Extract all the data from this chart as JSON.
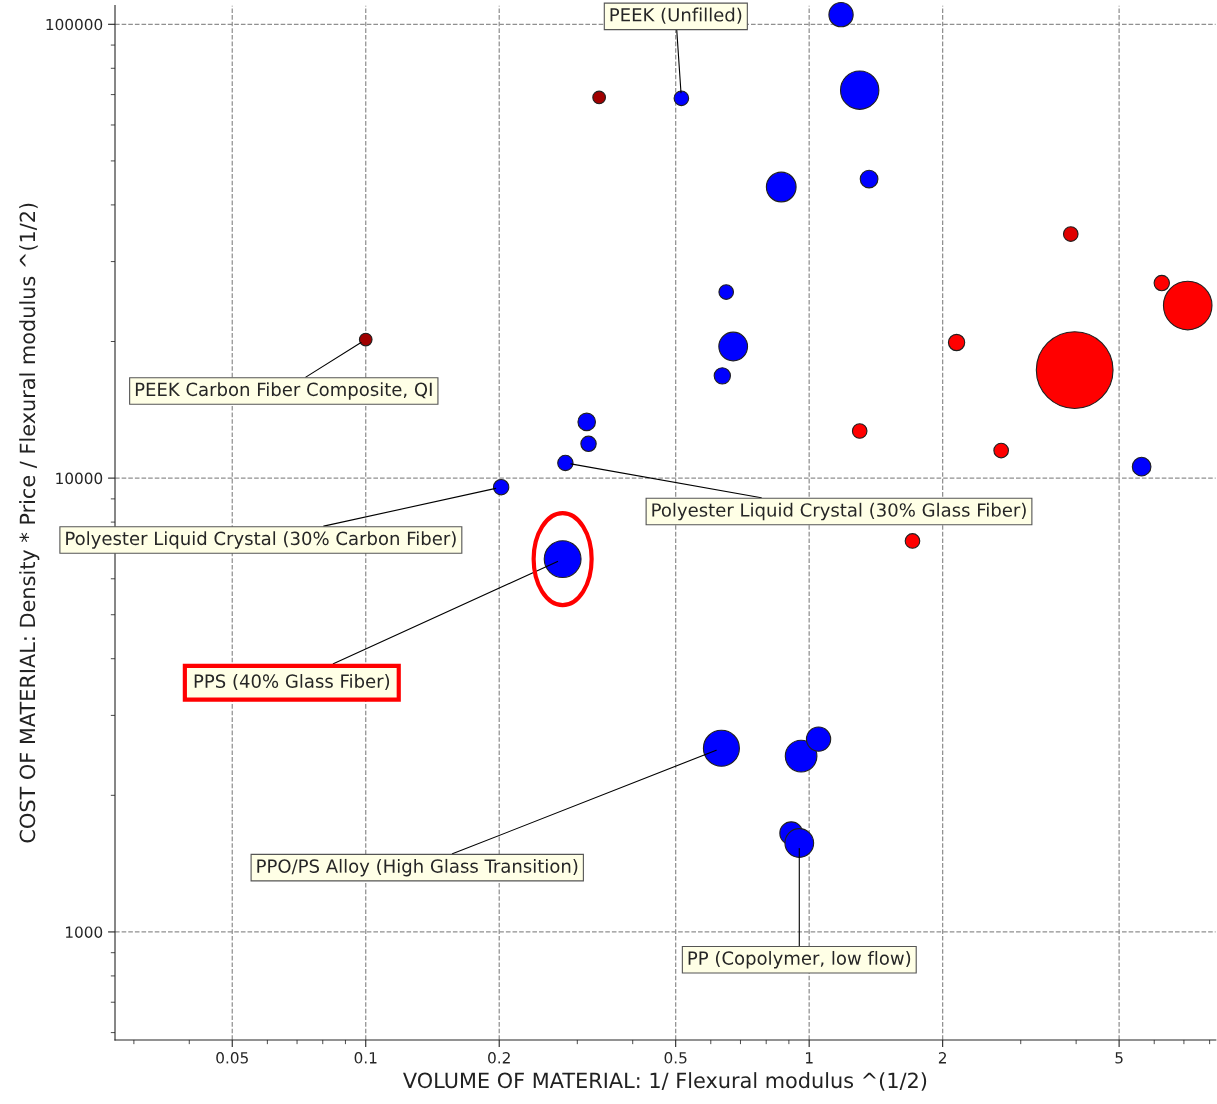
{
  "chart_data": {
    "type": "bubble",
    "xlabel": "VOLUME OF MATERIAL: 1/ Flexural modulus ^(1/2)",
    "ylabel": "COST OF MATERIAL: Density * Price / Flexural modulus ^(1/2)",
    "log": "xy",
    "xlim": [
      0.0272,
      8.26
    ],
    "ylim": [
      578,
      110000
    ],
    "xticks": [
      0.05,
      0.1,
      0.2,
      0.5,
      1,
      2,
      5
    ],
    "yticks": [
      1000,
      10000,
      100000
    ],
    "grid": true,
    "legend": false,
    "series": [
      {
        "x": [
          1.18,
          1.3,
          0.515,
          0.336,
          1.365,
          0.865,
          3.89,
          6.24,
          7.14,
          0.65,
          0.674,
          2.15,
          3.97,
          0.1,
          0.637,
          0.315,
          0.318,
          1.3,
          2.71,
          0.282,
          5.62,
          0.202,
          1.71,
          0.278,
          0.634,
          0.959,
          1.05,
          0.911,
          0.95
        ],
        "values": [
          105000,
          71600,
          68700,
          69000,
          45600,
          43800,
          34500,
          26900,
          24000,
          25700,
          19500,
          19900,
          17300,
          20200,
          16800,
          13300,
          11900,
          12700,
          11500,
          10800,
          10600,
          9550,
          7270,
          6630,
          2540,
          2440,
          2660,
          1650,
          1570
        ],
        "sizes": [
          0.1,
          0.25,
          0.036,
          0.027,
          0.053,
          0.15,
          0.036,
          0.04,
          0.4,
          0.036,
          0.14,
          0.045,
          1.0,
          0.027,
          0.045,
          0.052,
          0.04,
          0.036,
          0.036,
          0.04,
          0.059,
          0.04,
          0.036,
          0.23,
          0.22,
          0.17,
          0.1,
          0.088,
          0.14
        ],
        "colors": [
          "#0000ff",
          "#0000ff",
          "#0000ff",
          "#a00000",
          "#0000ff",
          "#0000ff",
          "#e00000",
          "#ff0000",
          "#ff0000",
          "#0000ff",
          "#0000ff",
          "#ff0000",
          "#ff0000",
          "#a00000",
          "#0000ff",
          "#0000ff",
          "#0000ff",
          "#ff0000",
          "#ff0000",
          "#0000ff",
          "#0000ff",
          "#0000ff",
          "#ff0000",
          "#0000ff",
          "#0000ff",
          "#0000ff",
          "#0000ff",
          "#0000ff",
          "#0000ff"
        ]
      }
    ],
    "annotations": [
      {
        "text": "PEEK (Unfilled)",
        "x": 0.515,
        "y": 68700
      },
      {
        "text": "PEEK Carbon Fiber Composite, QI",
        "x": 0.1,
        "y": 20200
      },
      {
        "text": "Polyester Liquid Crystal (30% Glass Fiber)",
        "x": 0.282,
        "y": 10800
      },
      {
        "text": "Polyester Liquid Crystal (30% Carbon Fiber)",
        "x": 0.202,
        "y": 9550
      },
      {
        "text": "PPS (40% Glass Fiber)",
        "x": 0.278,
        "y": 6630
      },
      {
        "text": "PPO/PS Alloy (High Glass Transition)",
        "x": 0.634,
        "y": 2540
      },
      {
        "text": "PP (Copolymer, low flow)",
        "x": 0.95,
        "y": 1570
      }
    ]
  }
}
